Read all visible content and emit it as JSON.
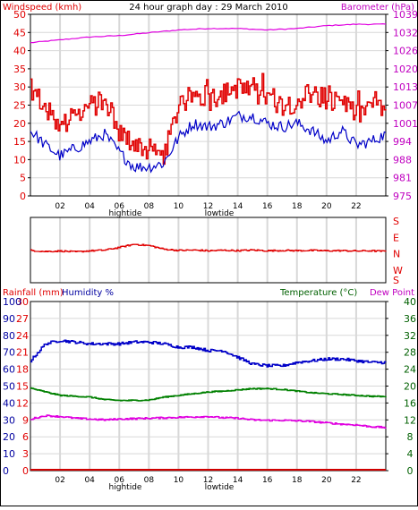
{
  "chart_data": [
    {
      "type": "line",
      "title": "24 hour graph day : 29 March 2010",
      "left_axis_label": "Windspeed (kmh)",
      "right_axis_label": "Barometer (hPa)",
      "left_ticks": [
        "0",
        "5",
        "10",
        "15",
        "20",
        "25",
        "30",
        "35",
        "40",
        "45",
        "50"
      ],
      "right_ticks": [
        "975",
        "981",
        "988",
        "994",
        "1001",
        "1007",
        "1013",
        "1020",
        "1026",
        "1032",
        "1039"
      ],
      "x_ticks": [
        "02",
        "04",
        "06",
        "08",
        "10",
        "12",
        "14",
        "16",
        "18",
        "20",
        "22"
      ],
      "x_annotations": [
        "hightide",
        "lowtide"
      ],
      "ylim_left": [
        0,
        50
      ],
      "ylim_right": [
        975,
        1039
      ],
      "grid": true,
      "series": [
        {
          "role": "gust",
          "axis": "left",
          "x": [
            0,
            1,
            2,
            3,
            4,
            5,
            6,
            7,
            8,
            9,
            10,
            11,
            12,
            13,
            14,
            15,
            16,
            17,
            18,
            19,
            20,
            21,
            22,
            23,
            24
          ],
          "values": [
            30,
            24,
            19,
            22,
            25,
            25,
            17,
            15,
            12,
            11,
            25,
            28,
            27,
            28,
            30,
            28,
            27,
            25,
            26,
            29,
            25,
            27,
            22,
            25,
            23
          ]
        },
        {
          "role": "average",
          "axis": "left",
          "x": [
            0,
            1,
            2,
            3,
            4,
            5,
            6,
            7,
            8,
            9,
            10,
            11,
            12,
            13,
            14,
            15,
            16,
            17,
            18,
            19,
            20,
            21,
            22,
            23,
            24
          ],
          "values": [
            18,
            14,
            11,
            13,
            15,
            17,
            12,
            8,
            8,
            9,
            16,
            20,
            19,
            20,
            22,
            22,
            20,
            19,
            20,
            18,
            15,
            18,
            14,
            15,
            17
          ]
        },
        {
          "role": "barometer",
          "axis": "right",
          "x": [
            0,
            2,
            4,
            6,
            8,
            10,
            12,
            14,
            16,
            18,
            20,
            22,
            24
          ],
          "values": [
            1029,
            1030,
            1031,
            1031.5,
            1032.5,
            1033.5,
            1034,
            1034,
            1033.5,
            1034,
            1035,
            1035.5,
            1035.5
          ]
        }
      ]
    },
    {
      "type": "line",
      "direction_labels": [
        "S",
        "E",
        "N",
        "W",
        "S"
      ],
      "series": [
        {
          "role": "wind-direction",
          "x": [
            0,
            1,
            2,
            3,
            4,
            5,
            6,
            7,
            8,
            9,
            10,
            11,
            12,
            13,
            14,
            15,
            16,
            17,
            18,
            19,
            20,
            21,
            22,
            23,
            24
          ],
          "values": [
            178,
            172,
            175,
            170,
            176,
            180,
            195,
            212,
            205,
            185,
            178,
            180,
            176,
            179,
            177,
            180,
            176,
            178,
            177,
            178,
            176,
            177,
            175,
            176,
            173
          ]
        }
      ]
    },
    {
      "type": "line",
      "left_axis_label_1": "Rainfall (mm)",
      "left_axis_label_2": "Humidity %",
      "right_axis_label_1": "Temperature (°C)",
      "right_axis_label_2": "Dew Point",
      "rain_ticks": [
        "0",
        "3",
        "6",
        "9",
        "12",
        "15",
        "18",
        "21",
        "24",
        "27",
        "30"
      ],
      "humidity_ticks": [
        "0",
        "10",
        "20",
        "30",
        "40",
        "50",
        "60",
        "70",
        "80",
        "90",
        "100"
      ],
      "temp_ticks": [
        "0",
        "4",
        "8",
        "12",
        "16",
        "20",
        "24",
        "28",
        "32",
        "36",
        "40"
      ],
      "x_ticks": [
        "02",
        "04",
        "06",
        "08",
        "10",
        "12",
        "14",
        "16",
        "18",
        "20",
        "22"
      ],
      "x_annotations": [
        "hightide",
        "lowtide"
      ],
      "ylim_humidity": [
        0,
        100
      ],
      "ylim_temperature": [
        0,
        40
      ],
      "grid": true,
      "series": [
        {
          "role": "humidity",
          "axis": "humidity",
          "x": [
            0,
            1,
            2,
            3,
            4,
            5,
            6,
            7,
            8,
            9,
            10,
            11,
            12,
            13,
            14,
            15,
            16,
            17,
            18,
            19,
            20,
            21,
            22,
            23,
            24
          ],
          "values": [
            65,
            75,
            77,
            76,
            75,
            75,
            75,
            76,
            76,
            75,
            73,
            73,
            71,
            71,
            67,
            63,
            62,
            62,
            64,
            65,
            66,
            66,
            65,
            64,
            64
          ]
        },
        {
          "role": "temperature",
          "axis": "temperature",
          "x": [
            0,
            1,
            2,
            3,
            4,
            5,
            6,
            7,
            8,
            9,
            10,
            11,
            12,
            13,
            14,
            15,
            16,
            17,
            18,
            19,
            20,
            21,
            22,
            23,
            24
          ],
          "values": [
            19.5,
            18.6,
            17.8,
            17.6,
            17.4,
            16.8,
            16.6,
            16.6,
            16.7,
            17.4,
            17.8,
            18.2,
            18.6,
            18.8,
            19.1,
            19.4,
            19.4,
            19.2,
            18.8,
            18.4,
            18.2,
            18.0,
            17.8,
            17.6,
            17.5
          ]
        },
        {
          "role": "dew-point",
          "axis": "temperature",
          "x": [
            0,
            1,
            2,
            3,
            4,
            5,
            6,
            7,
            8,
            9,
            10,
            11,
            12,
            13,
            14,
            15,
            16,
            17,
            18,
            19,
            20,
            21,
            22,
            23,
            24
          ],
          "values": [
            12.2,
            13.0,
            12.8,
            12.4,
            12.2,
            12.0,
            12.2,
            12.3,
            12.4,
            12.5,
            12.6,
            12.7,
            12.8,
            12.5,
            12.4,
            12.0,
            11.9,
            11.9,
            11.8,
            11.6,
            11.3,
            11.0,
            10.8,
            10.4,
            10.2
          ]
        },
        {
          "role": "rainfall",
          "axis": "rain",
          "x": [
            0,
            24
          ],
          "values": [
            0,
            0
          ]
        }
      ]
    }
  ],
  "colors": {
    "gust": "#e00000",
    "average": "#0000c8",
    "barometer": "#e000e0",
    "direction": "#e00000",
    "humidity": "#0000c8",
    "temperature": "#008000",
    "dew_point": "#e000e0",
    "rainfall": "#d00000",
    "grid": "#d8d8d8",
    "axis_text_left": "#e00000",
    "axis_text_right_top": "#c000c0",
    "axis_text_right_bottom": "#006000",
    "humidity_label": "#0000a0"
  }
}
